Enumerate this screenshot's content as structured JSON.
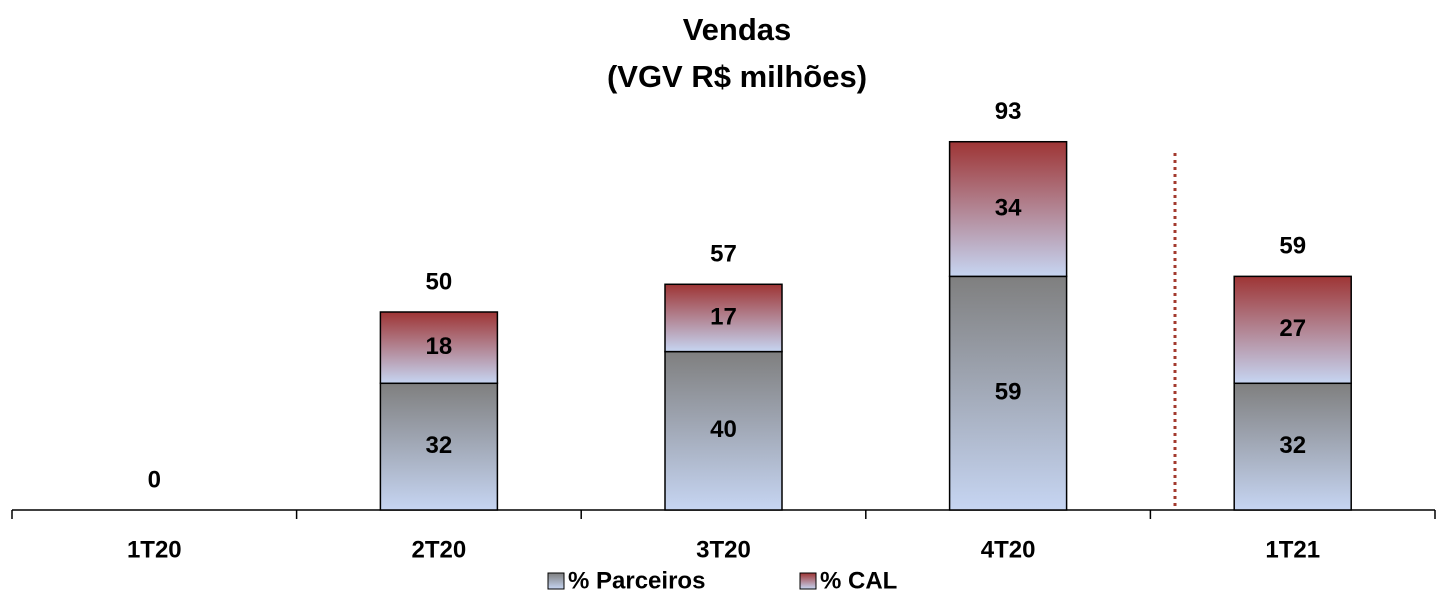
{
  "chart_data": {
    "type": "stacked_bar",
    "title": [
      "Vendas",
      "(VGV R$ milhões)"
    ],
    "categories": [
      "1T20",
      "2T20",
      "3T20",
      "4T20",
      "1T21"
    ],
    "series": [
      {
        "name": "% Parceiros",
        "color": "#7f7f7f",
        "values": [
          null,
          32,
          40,
          59,
          32
        ]
      },
      {
        "name": "% CAL",
        "color": "#9e3535",
        "values": [
          null,
          18,
          17,
          34,
          27
        ]
      }
    ],
    "totals": [
      0,
      50,
      57,
      93,
      59
    ],
    "ylim": [
      0,
      100
    ],
    "grid": false
  }
}
